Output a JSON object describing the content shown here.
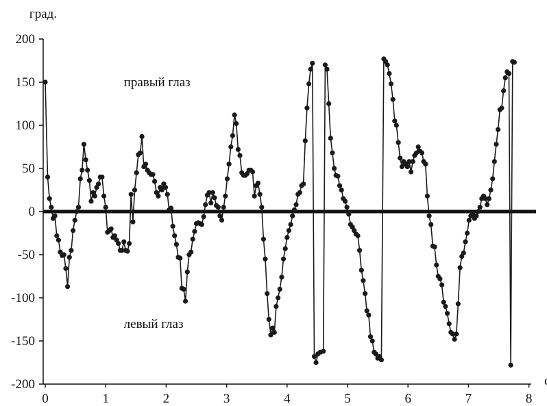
{
  "chart_data": {
    "type": "scatter",
    "title": "",
    "ylabel": "град.",
    "xlabel": "с",
    "xlim": [
      0,
      8.4
    ],
    "ylim": [
      -200,
      200
    ],
    "x_ticks": [
      0,
      1,
      2,
      3,
      4,
      5,
      6,
      7,
      8
    ],
    "y_ticks": [
      200,
      150,
      100,
      50,
      0,
      -50,
      -100,
      -150,
      -200
    ],
    "annotations": [
      {
        "text": "правый глаз",
        "x": 1.3,
        "y": 150
      },
      {
        "text": "левый глаз",
        "x": 1.3,
        "y": -130
      }
    ],
    "grid": false,
    "zero_line": true,
    "series": [
      {
        "color": "#1a1a1a",
        "points": [
          [
            0.0,
            150
          ],
          [
            0.04,
            40
          ],
          [
            0.07,
            15
          ],
          [
            0.1,
            5
          ],
          [
            0.13,
            -8
          ],
          [
            0.16,
            -5
          ],
          [
            0.19,
            -28
          ],
          [
            0.22,
            -33
          ],
          [
            0.25,
            -47
          ],
          [
            0.28,
            -51
          ],
          [
            0.31,
            -50
          ],
          [
            0.34,
            -66
          ],
          [
            0.37,
            -87
          ],
          [
            0.4,
            -53
          ],
          [
            0.43,
            -45
          ],
          [
            0.46,
            -22
          ],
          [
            0.49,
            -10
          ],
          [
            0.52,
            0
          ],
          [
            0.55,
            5
          ],
          [
            0.58,
            38
          ],
          [
            0.61,
            48
          ],
          [
            0.64,
            78
          ],
          [
            0.67,
            60
          ],
          [
            0.7,
            48
          ],
          [
            0.73,
            36
          ],
          [
            0.76,
            12
          ],
          [
            0.79,
            22
          ],
          [
            0.82,
            18
          ],
          [
            0.85,
            28
          ],
          [
            0.88,
            32
          ],
          [
            0.91,
            40
          ],
          [
            0.94,
            40
          ],
          [
            0.97,
            18
          ],
          [
            1.0,
            5
          ],
          [
            1.03,
            -24
          ],
          [
            1.06,
            -22
          ],
          [
            1.09,
            -20
          ],
          [
            1.12,
            -30
          ],
          [
            1.15,
            -28
          ],
          [
            1.18,
            -33
          ],
          [
            1.21,
            -37
          ],
          [
            1.24,
            -45
          ],
          [
            1.27,
            -45
          ],
          [
            1.3,
            -35
          ],
          [
            1.33,
            -45
          ],
          [
            1.36,
            -46
          ],
          [
            1.39,
            -37
          ],
          [
            1.42,
            20
          ],
          [
            1.45,
            -12
          ],
          [
            1.48,
            25
          ],
          [
            1.51,
            45
          ],
          [
            1.54,
            66
          ],
          [
            1.57,
            68
          ],
          [
            1.6,
            87
          ],
          [
            1.63,
            52
          ],
          [
            1.66,
            55
          ],
          [
            1.69,
            48
          ],
          [
            1.72,
            45
          ],
          [
            1.75,
            43
          ],
          [
            1.78,
            43
          ],
          [
            1.81,
            35
          ],
          [
            1.84,
            22
          ],
          [
            1.87,
            18
          ],
          [
            1.9,
            28
          ],
          [
            1.93,
            25
          ],
          [
            1.96,
            32
          ],
          [
            1.99,
            28
          ],
          [
            2.02,
            20
          ],
          [
            2.05,
            2
          ],
          [
            2.08,
            4
          ],
          [
            2.11,
            -17
          ],
          [
            2.14,
            -28
          ],
          [
            2.17,
            -38
          ],
          [
            2.2,
            -53
          ],
          [
            2.23,
            -54
          ],
          [
            2.26,
            -89
          ],
          [
            2.29,
            -90
          ],
          [
            2.32,
            -104
          ],
          [
            2.35,
            -70
          ],
          [
            2.38,
            -50
          ],
          [
            2.41,
            -47
          ],
          [
            2.44,
            -32
          ],
          [
            2.47,
            -23
          ],
          [
            2.5,
            -14
          ],
          [
            2.53,
            -13
          ],
          [
            2.56,
            -14
          ],
          [
            2.59,
            -15
          ],
          [
            2.62,
            -6
          ],
          [
            2.65,
            8
          ],
          [
            2.68,
            19
          ],
          [
            2.71,
            22
          ],
          [
            2.74,
            10
          ],
          [
            2.77,
            22
          ],
          [
            2.8,
            16
          ],
          [
            2.83,
            7
          ],
          [
            2.86,
            5
          ],
          [
            2.89,
            -5
          ],
          [
            2.92,
            -10
          ],
          [
            2.95,
            5
          ],
          [
            2.98,
            18
          ],
          [
            3.01,
            38
          ],
          [
            3.04,
            55
          ],
          [
            3.07,
            75
          ],
          [
            3.1,
            88
          ],
          [
            3.13,
            112
          ],
          [
            3.16,
            102
          ],
          [
            3.19,
            72
          ],
          [
            3.22,
            65
          ],
          [
            3.25,
            45
          ],
          [
            3.28,
            42
          ],
          [
            3.31,
            42
          ],
          [
            3.34,
            44
          ],
          [
            3.37,
            48
          ],
          [
            3.4,
            48
          ],
          [
            3.43,
            46
          ],
          [
            3.46,
            18
          ],
          [
            3.49,
            30
          ],
          [
            3.52,
            33
          ],
          [
            3.55,
            20
          ],
          [
            3.58,
            5
          ],
          [
            3.61,
            -32
          ],
          [
            3.64,
            -55
          ],
          [
            3.67,
            -95
          ],
          [
            3.7,
            -125
          ],
          [
            3.73,
            -143
          ],
          [
            3.76,
            -135
          ],
          [
            3.79,
            -140
          ],
          [
            3.82,
            -110
          ],
          [
            3.85,
            -100
          ],
          [
            3.88,
            -90
          ],
          [
            3.91,
            -76
          ],
          [
            3.94,
            -55
          ],
          [
            3.97,
            -43
          ],
          [
            4.0,
            -30
          ],
          [
            4.03,
            -22
          ],
          [
            4.06,
            -15
          ],
          [
            4.09,
            -5
          ],
          [
            4.12,
            2
          ],
          [
            4.15,
            8
          ],
          [
            4.18,
            20
          ],
          [
            4.21,
            22
          ],
          [
            4.24,
            30
          ],
          [
            4.27,
            32
          ],
          [
            4.3,
            82
          ],
          [
            4.33,
            120
          ],
          [
            4.36,
            148
          ],
          [
            4.39,
            165
          ],
          [
            4.42,
            172
          ],
          [
            4.45,
            -168
          ],
          [
            4.48,
            -175
          ],
          [
            4.51,
            -165
          ],
          [
            4.55,
            -163
          ],
          [
            4.6,
            -162
          ],
          [
            4.63,
            170
          ],
          [
            4.66,
            165
          ],
          [
            4.69,
            125
          ],
          [
            4.72,
            85
          ],
          [
            4.75,
            68
          ],
          [
            4.78,
            50
          ],
          [
            4.81,
            42
          ],
          [
            4.84,
            41
          ],
          [
            4.87,
            30
          ],
          [
            4.9,
            25
          ],
          [
            4.93,
            15
          ],
          [
            4.96,
            12
          ],
          [
            4.99,
            5
          ],
          [
            5.02,
            -3
          ],
          [
            5.05,
            -15
          ],
          [
            5.08,
            -18
          ],
          [
            5.11,
            -22
          ],
          [
            5.14,
            -26
          ],
          [
            5.17,
            -28
          ],
          [
            5.2,
            -45
          ],
          [
            5.23,
            -68
          ],
          [
            5.26,
            -80
          ],
          [
            5.29,
            -95
          ],
          [
            5.32,
            -115
          ],
          [
            5.35,
            -120
          ],
          [
            5.38,
            -145
          ],
          [
            5.41,
            -150
          ],
          [
            5.44,
            -163
          ],
          [
            5.47,
            -165
          ],
          [
            5.5,
            -170
          ],
          [
            5.53,
            -168
          ],
          [
            5.56,
            -172
          ],
          [
            5.6,
            177
          ],
          [
            5.63,
            174
          ],
          [
            5.66,
            170
          ],
          [
            5.69,
            160
          ],
          [
            5.72,
            148
          ],
          [
            5.75,
            130
          ],
          [
            5.78,
            105
          ],
          [
            5.81,
            100
          ],
          [
            5.84,
            80
          ],
          [
            5.87,
            62
          ],
          [
            5.9,
            52
          ],
          [
            5.93,
            58
          ],
          [
            5.96,
            55
          ],
          [
            5.99,
            52
          ],
          [
            6.02,
            58
          ],
          [
            6.05,
            46
          ],
          [
            6.08,
            58
          ],
          [
            6.11,
            65
          ],
          [
            6.14,
            68
          ],
          [
            6.17,
            75
          ],
          [
            6.2,
            70
          ],
          [
            6.23,
            68
          ],
          [
            6.26,
            58
          ],
          [
            6.29,
            55
          ],
          [
            6.32,
            18
          ],
          [
            6.35,
            -5
          ],
          [
            6.38,
            -15
          ],
          [
            6.41,
            -40
          ],
          [
            6.44,
            -41
          ],
          [
            6.47,
            -62
          ],
          [
            6.5,
            -75
          ],
          [
            6.53,
            -78
          ],
          [
            6.56,
            -85
          ],
          [
            6.59,
            -105
          ],
          [
            6.62,
            -110
          ],
          [
            6.65,
            -118
          ],
          [
            6.68,
            -130
          ],
          [
            6.71,
            -140
          ],
          [
            6.74,
            -142
          ],
          [
            6.77,
            -148
          ],
          [
            6.8,
            -142
          ],
          [
            6.83,
            -107
          ],
          [
            6.86,
            -65
          ],
          [
            6.89,
            -52
          ],
          [
            6.92,
            -48
          ],
          [
            6.95,
            -35
          ],
          [
            6.98,
            -25
          ],
          [
            7.01,
            -10
          ],
          [
            7.04,
            -5
          ],
          [
            7.07,
            -2
          ],
          [
            7.1,
            -8
          ],
          [
            7.13,
            -5
          ],
          [
            7.16,
            0
          ],
          [
            7.19,
            5
          ],
          [
            7.22,
            15
          ],
          [
            7.25,
            18
          ],
          [
            7.28,
            15
          ],
          [
            7.31,
            8
          ],
          [
            7.34,
            15
          ],
          [
            7.37,
            25
          ],
          [
            7.4,
            38
          ],
          [
            7.43,
            58
          ],
          [
            7.46,
            78
          ],
          [
            7.49,
            95
          ],
          [
            7.52,
            118
          ],
          [
            7.55,
            120
          ],
          [
            7.58,
            140
          ],
          [
            7.61,
            155
          ],
          [
            7.64,
            162
          ],
          [
            7.67,
            160
          ],
          [
            7.7,
            -178
          ],
          [
            7.73,
            174
          ],
          [
            7.76,
            173
          ]
        ]
      }
    ]
  }
}
